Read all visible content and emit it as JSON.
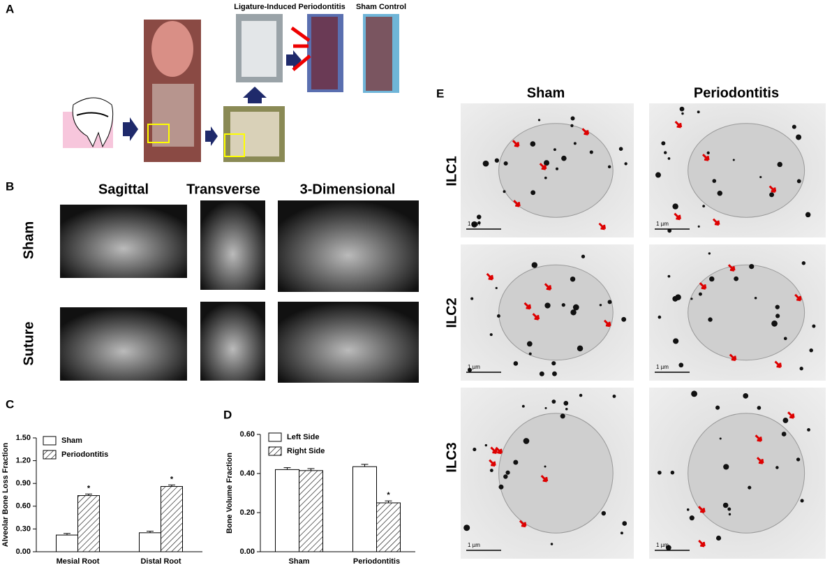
{
  "panels": {
    "a": {
      "label": "A",
      "titles": [
        "Ligature-Induced Periodontitis",
        "Sham Control"
      ]
    },
    "b": {
      "label": "B",
      "columns": [
        "Sagittal",
        "Transverse",
        "3-Dimensional"
      ],
      "rows": [
        "Sham",
        "Suture"
      ]
    },
    "e": {
      "label": "E",
      "columns": [
        "Sham",
        "Periodontitis"
      ],
      "rows": [
        "ILC1",
        "ILC2",
        "ILC3"
      ],
      "scale_bar": "1 µm"
    }
  },
  "chart_data": [
    {
      "type": "bar",
      "panel_label": "C",
      "ylabel": "Alveolar Bone Loss Fraction",
      "categories": [
        "Mesial Root",
        "Distal Root"
      ],
      "series": [
        {
          "name": "Sham",
          "color": "#ffffff",
          "hatch": false,
          "values": [
            0.22,
            0.25
          ],
          "errors": [
            0.02,
            0.02
          ]
        },
        {
          "name": "Periodontitis",
          "color": "#ffffff",
          "hatch": true,
          "values": [
            0.74,
            0.86
          ],
          "errors": [
            0.02,
            0.02
          ]
        }
      ],
      "ylim": [
        0,
        1.5
      ],
      "yticks": [
        {
          "value": 0,
          "label": "0.00"
        },
        {
          "value": 0.3,
          "label": "0.30"
        },
        {
          "value": 0.6,
          "label": "0.60"
        },
        {
          "value": 0.9,
          "label": "0.90"
        },
        {
          "value": 1.2,
          "label": "1.20"
        },
        {
          "value": 1.5,
          "label": "1.50"
        }
      ],
      "legend": "upper left",
      "annotations": [
        {
          "text": "*",
          "series": 1,
          "category": 0
        },
        {
          "text": "*",
          "series": 1,
          "category": 1
        }
      ]
    },
    {
      "type": "bar",
      "panel_label": "D",
      "ylabel": "Bone Volume Fraction",
      "categories": [
        "Sham",
        "Periodontitis"
      ],
      "series": [
        {
          "name": "Left Side",
          "color": "#ffffff",
          "hatch": false,
          "values": [
            0.42,
            0.435
          ],
          "errors": [
            0.01,
            0.012
          ]
        },
        {
          "name": "Right Side",
          "color": "#ffffff",
          "hatch": true,
          "values": [
            0.415,
            0.25
          ],
          "errors": [
            0.01,
            0.01
          ]
        }
      ],
      "ylim": [
        0,
        0.6
      ],
      "yticks": [
        {
          "value": 0,
          "label": "0.00"
        },
        {
          "value": 0.2,
          "label": "0.20"
        },
        {
          "value": 0.4,
          "label": "0.40"
        },
        {
          "value": 0.6,
          "label": "0.60"
        }
      ],
      "legend": "upper left",
      "annotations": [
        {
          "text": "*",
          "series": 1,
          "category": 1
        }
      ]
    }
  ]
}
